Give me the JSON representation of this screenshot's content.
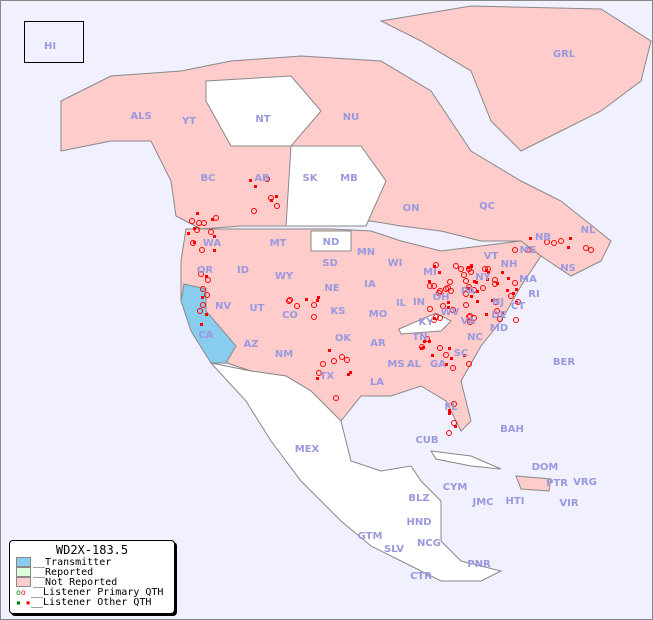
{
  "legend": {
    "title": "WD2X-183.5",
    "items": [
      {
        "label": "__Transmitter",
        "color": "#88ccee"
      },
      {
        "label": "__Reported",
        "color": "#ddffdd"
      },
      {
        "label": "__Not Reported",
        "color": "#ffcccc"
      },
      {
        "label": "__Listener Primary QTH",
        "marker": "open-circle"
      },
      {
        "label": "__Listener Other QTH",
        "marker": "filled-square"
      }
    ]
  },
  "colors": {
    "ocean": "#f0f0ff",
    "not_reported": "#ffcccc",
    "transmitter": "#88ccee",
    "unreported_region": "#ffffff",
    "marker": "#ff0000",
    "label": "#9999dd"
  },
  "regions": [
    "HI",
    "ALS",
    "YT",
    "NT",
    "NU",
    "GRL",
    "BC",
    "AB",
    "SK",
    "MB",
    "ON",
    "QC",
    "NL",
    "NS",
    "NB",
    "ME",
    "WA",
    "OR",
    "ID",
    "MT",
    "WY",
    "ND",
    "SD",
    "NE",
    "MN",
    "WI",
    "IA",
    "IL",
    "MI",
    "IN",
    "OH",
    "PA",
    "NY",
    "VT",
    "NH",
    "MA",
    "RI",
    "CT",
    "NJ",
    "DE",
    "MD",
    "NV",
    "UT",
    "CO",
    "KS",
    "MO",
    "KY",
    "WV",
    "VA",
    "CA",
    "AZ",
    "NM",
    "OK",
    "AR",
    "TN",
    "NC",
    "SC",
    "MS",
    "AL",
    "GA",
    "LA",
    "TX",
    "FL",
    "MEX",
    "CUB",
    "BAH",
    "BER",
    "DOM",
    "PTR",
    "VRG",
    "CYM",
    "JMC",
    "HTI",
    "VIR",
    "BLZ",
    "HND",
    "GTM",
    "SLV",
    "NCG",
    "CTR",
    "PNR"
  ]
}
